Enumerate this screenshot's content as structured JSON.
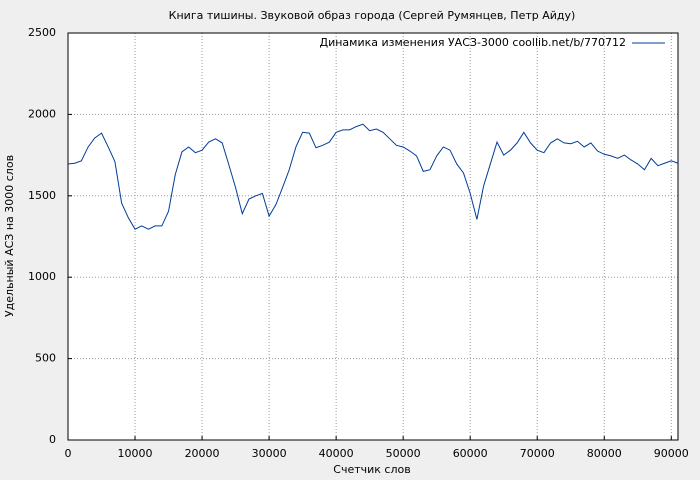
{
  "chart_data": {
    "type": "line",
    "title": "Книга тишины. Звуковой образ города (Сергей Румянцев, Петр Айду)",
    "x_label": "Счетчик слов",
    "y_label": "Удельный АСЗ на 3000 слов",
    "x": [
      0,
      1000,
      2000,
      3000,
      4000,
      5000,
      6000,
      7000,
      8000,
      9000,
      10000,
      11000,
      12000,
      13000,
      14000,
      15000,
      16000,
      17000,
      18000,
      19000,
      20000,
      21000,
      22000,
      23000,
      24000,
      25000,
      26000,
      27000,
      28000,
      29000,
      30000,
      31000,
      32000,
      33000,
      34000,
      35000,
      36000,
      37000,
      38000,
      39000,
      40000,
      41000,
      42000,
      43000,
      44000,
      45000,
      46000,
      47000,
      48000,
      49000,
      50000,
      51000,
      52000,
      53000,
      54000,
      55000,
      56000,
      57000,
      58000,
      59000,
      60000,
      61000,
      62000,
      63000,
      64000,
      65000,
      66000,
      67000,
      68000,
      69000,
      70000,
      71000,
      72000,
      73000,
      74000,
      75000,
      76000,
      77000,
      78000,
      79000,
      80000,
      81000,
      82000,
      83000,
      84000,
      85000,
      86000,
      87000,
      88000,
      89000,
      90000,
      91000
    ],
    "series": [
      {
        "name": "Динамика изменения УАСЗ-3000 coollib.net/b/770712",
        "color": "#003d99",
        "values": [
          1695,
          1700,
          1715,
          1800,
          1855,
          1885,
          1800,
          1710,
          1455,
          1365,
          1295,
          1315,
          1295,
          1315,
          1315,
          1405,
          1630,
          1770,
          1800,
          1765,
          1780,
          1830,
          1850,
          1825,
          1690,
          1550,
          1390,
          1480,
          1500,
          1515,
          1375,
          1445,
          1550,
          1660,
          1800,
          1890,
          1885,
          1795,
          1810,
          1830,
          1890,
          1905,
          1905,
          1925,
          1940,
          1900,
          1910,
          1890,
          1850,
          1810,
          1800,
          1775,
          1745,
          1650,
          1660,
          1745,
          1800,
          1780,
          1695,
          1640,
          1515,
          1355,
          1560,
          1695,
          1830,
          1750,
          1780,
          1825,
          1890,
          1825,
          1780,
          1765,
          1825,
          1850,
          1825,
          1820,
          1835,
          1800,
          1825,
          1775,
          1755,
          1745,
          1730,
          1750,
          1720,
          1695,
          1660,
          1730,
          1685,
          1700,
          1715,
          1700
        ]
      }
    ],
    "xlim": [
      0,
      91000
    ],
    "xticks": [
      0,
      10000,
      20000,
      30000,
      40000,
      50000,
      60000,
      70000,
      80000,
      90000
    ],
    "ylim": [
      0,
      2500
    ],
    "yticks": [
      0,
      500,
      1000,
      1500,
      2000,
      2500
    ],
    "grid": true,
    "legend": "upper-right"
  }
}
